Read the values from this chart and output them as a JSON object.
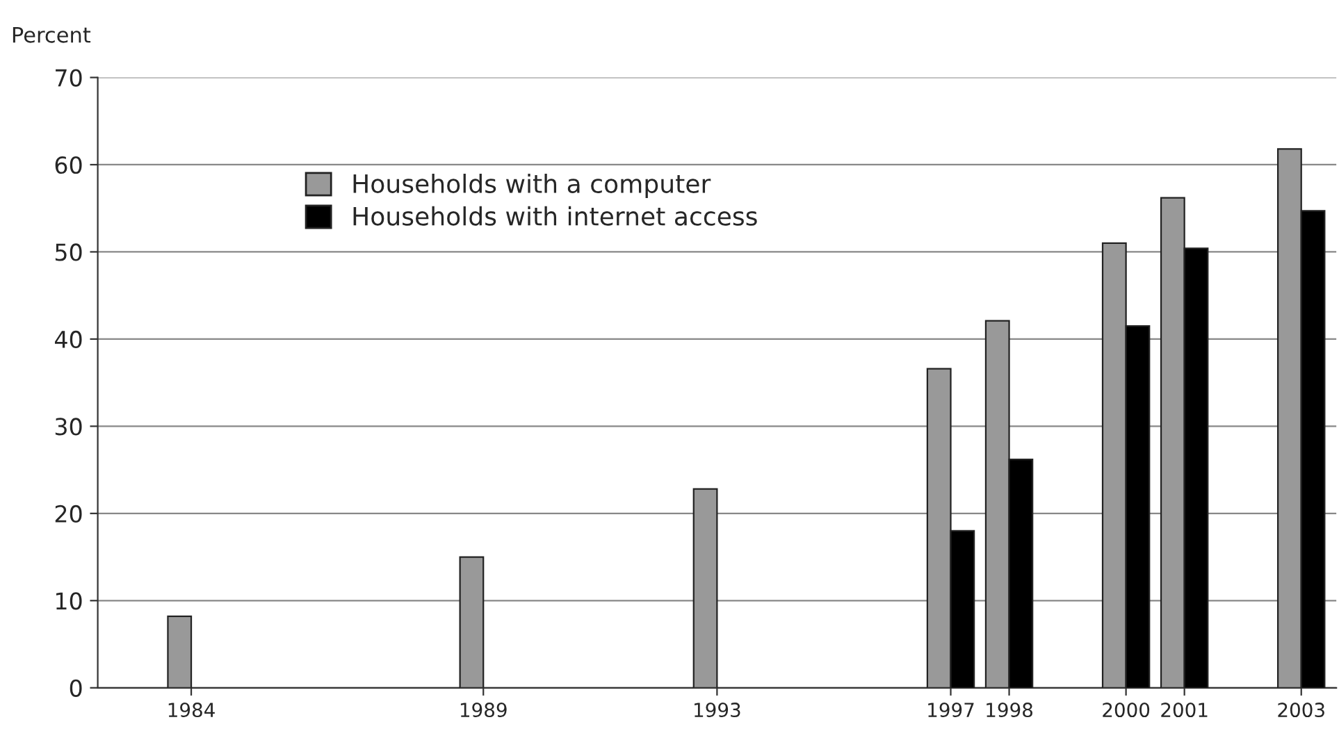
{
  "chart_data": {
    "type": "bar",
    "ylabel": "Percent",
    "x": [
      1984,
      1989,
      1993,
      1997,
      1998,
      2000,
      2001,
      2003
    ],
    "series": [
      {
        "name": "Households with a computer",
        "color": "#999999",
        "values": [
          8.2,
          15.0,
          22.8,
          36.6,
          42.1,
          51.0,
          56.2,
          61.8
        ]
      },
      {
        "name": "Households with internet access",
        "color": "#000000",
        "values": [
          null,
          null,
          null,
          18.0,
          26.2,
          41.5,
          50.4,
          54.7
        ]
      }
    ],
    "xlim": [
      1982.4,
      2003.6
    ],
    "xticks": [
      1984,
      1989,
      1993,
      1997,
      1998,
      2000,
      2001,
      2003
    ],
    "ylim": [
      0,
      70
    ],
    "yticks": [
      0,
      10,
      20,
      30,
      40,
      50,
      60,
      70
    ],
    "grid": "y",
    "legend": "top left"
  }
}
